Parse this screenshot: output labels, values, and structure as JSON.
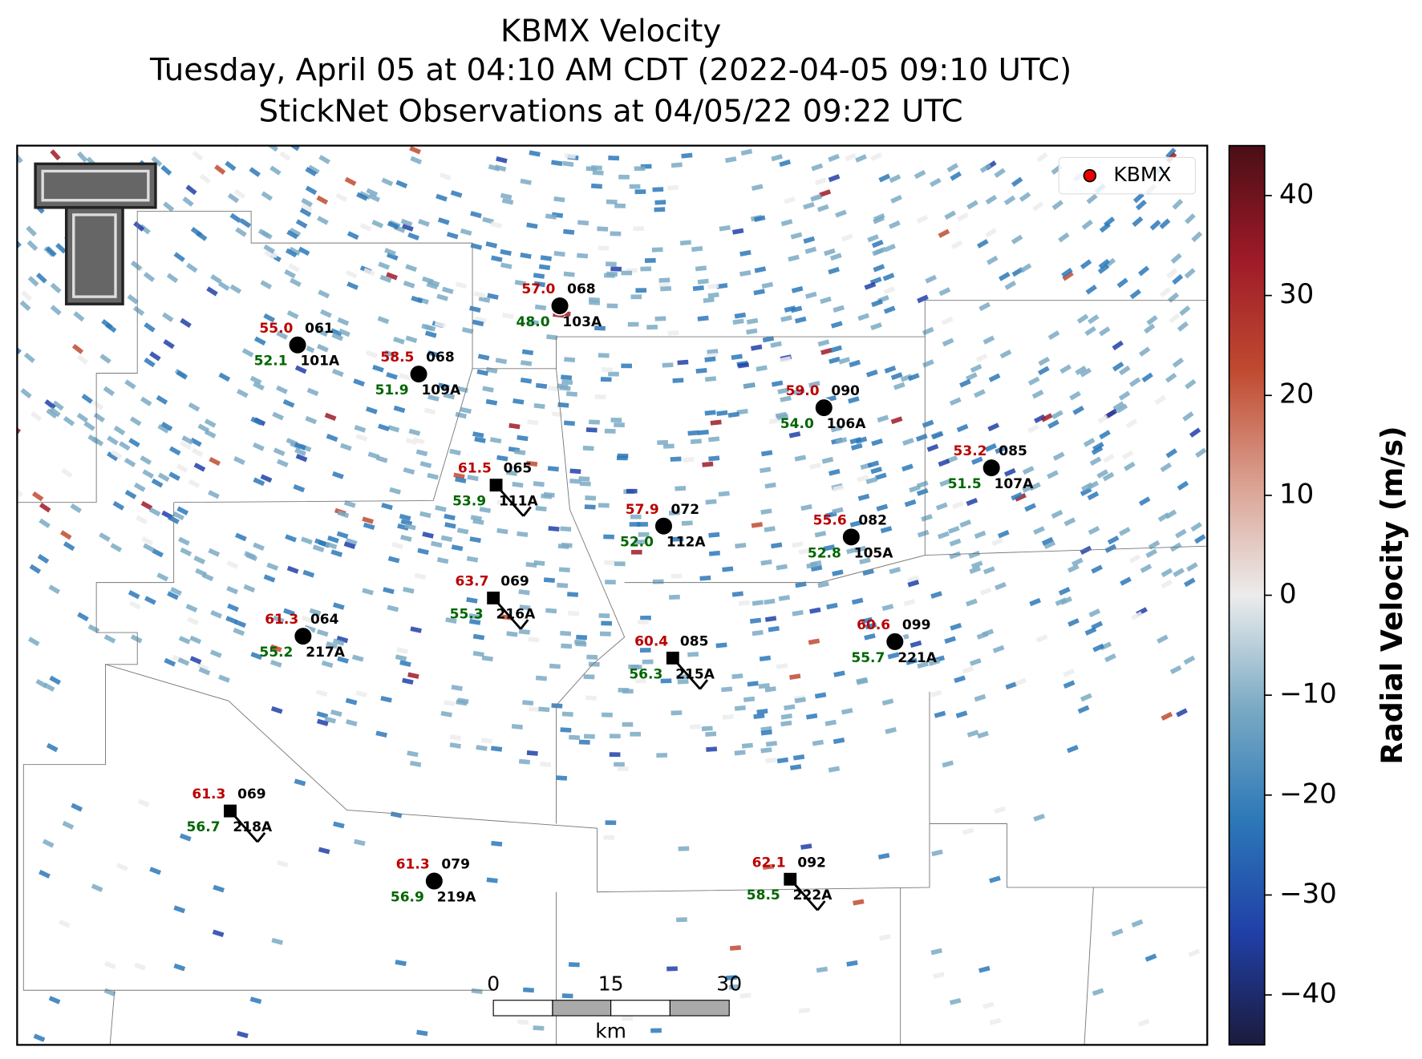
{
  "title": [
    "KBMX Velocity",
    "Tuesday, April 05 at 04:10 AM CDT (2022-04-05 09:10 UTC)",
    "StickNet Observations at 04/05/22 09:22 UTC"
  ],
  "legend": "KBMX",
  "stations": [
    {
      "id": "101A",
      "temperature": "55.0",
      "dewpoint": "52.1",
      "direction": "061",
      "marker": "circle"
    },
    {
      "id": "109A",
      "temperature": "58.5",
      "dewpoint": "51.9",
      "direction": "068",
      "marker": "circle"
    },
    {
      "id": "103A",
      "temperature": "57.0",
      "dewpoint": "48.0",
      "direction": "068",
      "marker": "circle"
    },
    {
      "id": "106A",
      "temperature": "59.0",
      "dewpoint": "54.0",
      "direction": "090",
      "marker": "circle"
    },
    {
      "id": "107A",
      "temperature": "53.2",
      "dewpoint": "51.5",
      "direction": "085",
      "marker": "circle"
    },
    {
      "id": "111A",
      "temperature": "61.5",
      "dewpoint": "53.9",
      "direction": "065",
      "marker": "square"
    },
    {
      "id": "112A",
      "temperature": "57.9",
      "dewpoint": "52.0",
      "direction": "072",
      "marker": "circle"
    },
    {
      "id": "105A",
      "temperature": "55.6",
      "dewpoint": "52.8",
      "direction": "082",
      "marker": "circle"
    },
    {
      "id": "216A",
      "temperature": "63.7",
      "dewpoint": "55.3",
      "direction": "069",
      "marker": "square"
    },
    {
      "id": "217A",
      "temperature": "61.3",
      "dewpoint": "55.2",
      "direction": "064",
      "marker": "circle"
    },
    {
      "id": "221A",
      "temperature": "60.6",
      "dewpoint": "55.7",
      "direction": "099",
      "marker": "circle"
    },
    {
      "id": "215A",
      "temperature": "60.4",
      "dewpoint": "56.3",
      "direction": "085",
      "marker": "square"
    },
    {
      "id": "218A",
      "temperature": "61.3",
      "dewpoint": "56.7",
      "direction": "069",
      "marker": "square"
    },
    {
      "id": "219A",
      "temperature": "61.3",
      "dewpoint": "56.9",
      "direction": "079",
      "marker": "circle"
    },
    {
      "id": "222A",
      "temperature": "62.1",
      "dewpoint": "58.5",
      "direction": "092",
      "marker": "square"
    }
  ],
  "colorbar": {
    "label": "Radial Velocity (m/s)",
    "lim": [
      -45,
      45
    ],
    "ticks": [
      40,
      30,
      20,
      10,
      0,
      {
        "value": -10,
        "label": "−10"
      },
      {
        "value": -20,
        "label": "−20"
      },
      {
        "value": -30,
        "label": "−30"
      },
      {
        "value": -40,
        "label": "−40"
      }
    ],
    "colors": [
      "#1b1b3c",
      "#2040a8",
      "#2c78b8",
      "#7aaac4",
      "#ececec",
      "#daa090",
      "#c04a30",
      "#9e1a28",
      "#4a0e16"
    ]
  },
  "scalebar": {
    "ticks": [
      0,
      15,
      30
    ],
    "unit": "km"
  }
}
